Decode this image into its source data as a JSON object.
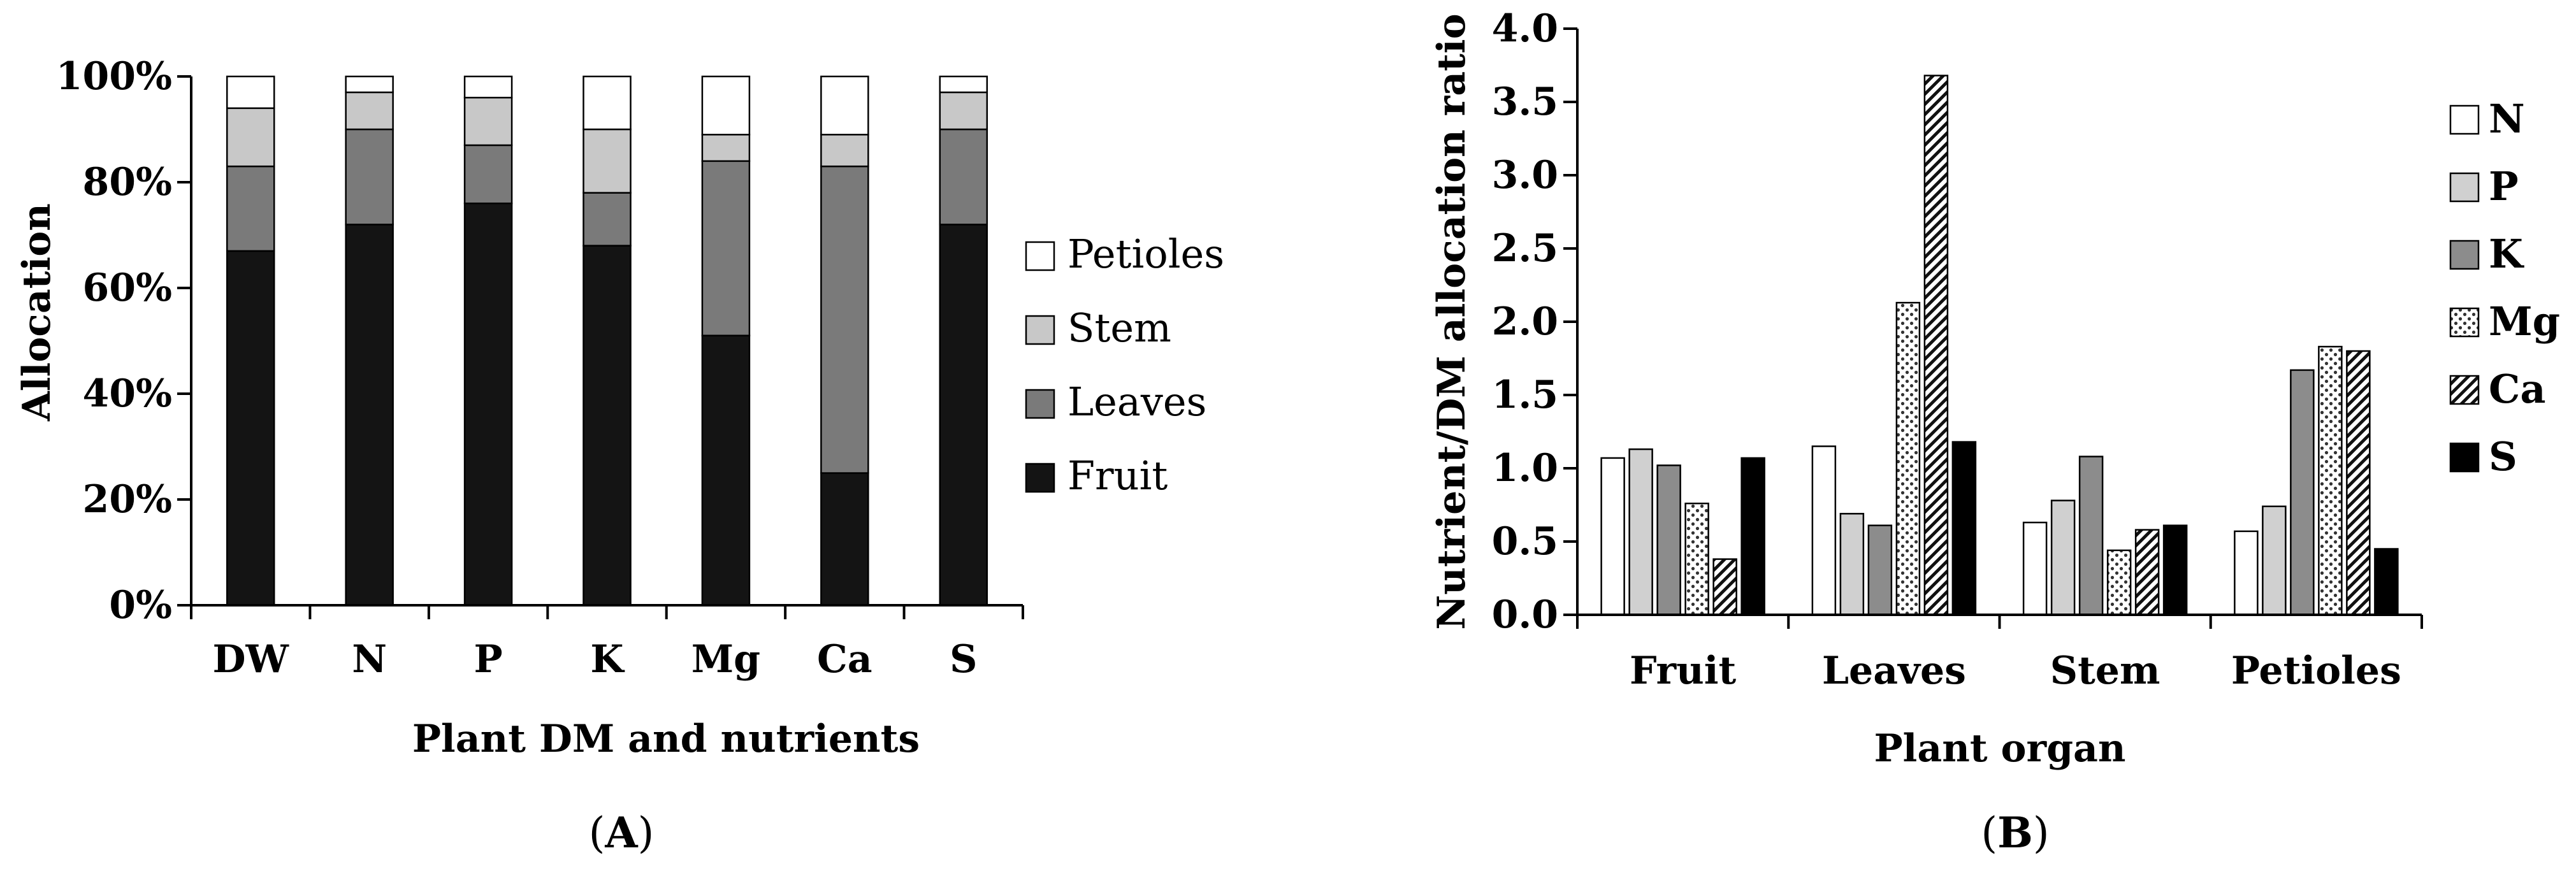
{
  "chart_data": [
    {
      "id": "A",
      "type": "bar",
      "stacked": true,
      "caption_letter": "A",
      "caption_open": "(",
      "caption_close": ")",
      "xlabel": "Plant DM and nutrients",
      "ylabel": "Allocation",
      "ylim": [
        0,
        100
      ],
      "y_ticks": [
        "0%",
        "20%",
        "40%",
        "60%",
        "80%",
        "100%"
      ],
      "categories": [
        "DW",
        "N",
        "P",
        "K",
        "Mg",
        "Ca",
        "S"
      ],
      "series": [
        {
          "name": "Fruit",
          "color": "#141414",
          "values": [
            67,
            72,
            76,
            68,
            51,
            25,
            72
          ]
        },
        {
          "name": "Leaves",
          "color": "#7a7a7a",
          "values": [
            16,
            18,
            11,
            10,
            33,
            58,
            18
          ]
        },
        {
          "name": "Stem",
          "color": "#c8c8c8",
          "values": [
            11,
            7,
            9,
            12,
            5,
            6,
            7
          ]
        },
        {
          "name": "Petioles",
          "color": "#ffffff",
          "values": [
            6,
            3,
            4,
            10,
            11,
            11,
            3
          ]
        }
      ],
      "legend_order": [
        "Petioles",
        "Stem",
        "Leaves",
        "Fruit"
      ],
      "legend_position": "right"
    },
    {
      "id": "B",
      "type": "bar",
      "stacked": false,
      "caption_letter": "B",
      "caption_open": "(",
      "caption_close": ")",
      "xlabel": "Plant organ",
      "ylabel": "Nutrient/DM allocation ratio",
      "ylim": [
        0,
        4
      ],
      "y_ticks": [
        "0.0",
        "0.5",
        "1.0",
        "1.5",
        "2.0",
        "2.5",
        "3.0",
        "3.5",
        "4.0"
      ],
      "categories": [
        "Fruit",
        "Leaves",
        "Stem",
        "Petioles"
      ],
      "series": [
        {
          "name": "N",
          "fill": "white",
          "values": [
            1.07,
            1.15,
            0.63,
            0.57
          ]
        },
        {
          "name": "P",
          "fill": "lightgray",
          "values": [
            1.13,
            0.69,
            0.78,
            0.74
          ]
        },
        {
          "name": "K",
          "fill": "gray",
          "values": [
            1.02,
            0.61,
            1.08,
            1.67
          ]
        },
        {
          "name": "Mg",
          "fill": "dots",
          "values": [
            0.76,
            2.13,
            0.44,
            1.83
          ]
        },
        {
          "name": "Ca",
          "fill": "diagonal",
          "values": [
            0.38,
            3.68,
            0.58,
            1.8
          ]
        },
        {
          "name": "S",
          "fill": "black",
          "values": [
            1.07,
            1.18,
            0.61,
            0.45
          ]
        }
      ],
      "legend_position": "right"
    }
  ]
}
